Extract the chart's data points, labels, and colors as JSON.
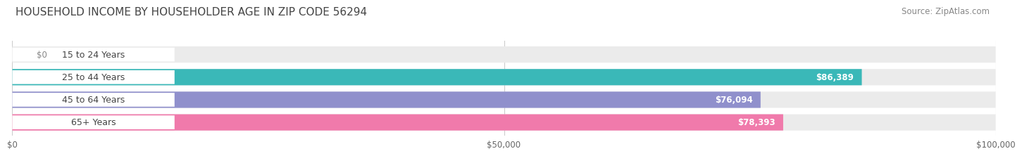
{
  "title": "HOUSEHOLD INCOME BY HOUSEHOLDER AGE IN ZIP CODE 56294",
  "source": "Source: ZipAtlas.com",
  "categories": [
    "15 to 24 Years",
    "25 to 44 Years",
    "45 to 64 Years",
    "65+ Years"
  ],
  "values": [
    0,
    86389,
    76094,
    78393
  ],
  "bar_colors": [
    "#c9a8d4",
    "#3ab8b8",
    "#9090cc",
    "#f07aab"
  ],
  "bar_labels": [
    "$0",
    "$86,389",
    "$76,094",
    "$78,393"
  ],
  "xlim": [
    0,
    100000
  ],
  "xticks": [
    0,
    50000,
    100000
  ],
  "xtick_labels": [
    "$0",
    "$50,000",
    "$100,000"
  ],
  "background_color": "#ffffff",
  "bar_bg_color": "#ebebeb",
  "title_fontsize": 11,
  "source_fontsize": 8.5,
  "label_fontsize": 8.5,
  "tick_fontsize": 8.5,
  "bar_height": 0.72,
  "cat_label_fontsize": 9
}
